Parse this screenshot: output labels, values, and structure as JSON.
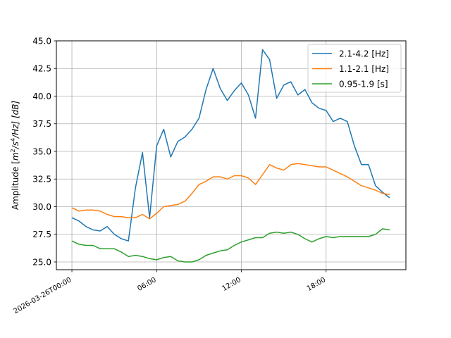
{
  "chart_data": {
    "type": "line",
    "title": "",
    "xlabel": "",
    "ylabel_prefix": "Amplitude [",
    "ylabel_math": "m",
    "ylabel_sup1": "2",
    "ylabel_mid": "/s",
    "ylabel_sup2": "4",
    "ylabel_suffix": "/Hz] [dB]",
    "ylim": [
      24.3,
      45.0
    ],
    "xlim_hours": [
      -1.1,
      23.65
    ],
    "y_ticks": [
      25.0,
      27.5,
      30.0,
      32.5,
      35.0,
      37.5,
      40.0,
      42.5,
      45.0
    ],
    "y_tick_labels": [
      "25.0",
      "27.5",
      "30.0",
      "32.5",
      "35.0",
      "37.5",
      "40.0",
      "42.5",
      "45.0"
    ],
    "x_ticks_hours": [
      0,
      6,
      12,
      18
    ],
    "x_tick_labels": [
      "2026-03-26T00:00",
      "06:00",
      "12:00",
      "18:00"
    ],
    "grid": true,
    "legend_position": "top-right",
    "x_hours": [
      0.0,
      0.5,
      1.0,
      1.5,
      2.0,
      2.5,
      3.0,
      3.5,
      4.0,
      4.5,
      5.0,
      5.5,
      6.0,
      6.5,
      7.0,
      7.5,
      8.0,
      8.5,
      9.0,
      9.5,
      10.0,
      10.5,
      11.0,
      11.5,
      12.0,
      12.5,
      13.0,
      13.5,
      14.0,
      14.5,
      15.0,
      15.5,
      16.0,
      16.5,
      17.0,
      17.5,
      18.0,
      18.5,
      19.0,
      19.5,
      20.0,
      20.5,
      21.0,
      21.5,
      22.0,
      22.5
    ],
    "series": [
      {
        "name": "2.1-4.2 [Hz]",
        "color": "#1f77b4",
        "values": [
          29.0,
          28.7,
          28.2,
          27.9,
          27.8,
          28.2,
          27.5,
          27.1,
          26.9,
          31.7,
          34.9,
          29.0,
          35.5,
          37.0,
          34.5,
          35.9,
          36.3,
          37.0,
          38.0,
          40.6,
          42.5,
          40.7,
          39.6,
          40.5,
          41.2,
          40.1,
          38.0,
          44.2,
          43.3,
          39.8,
          41.0,
          41.3,
          40.1,
          40.6,
          39.4,
          38.9,
          38.7,
          37.7,
          38.0,
          37.7,
          35.5,
          33.8,
          33.8,
          31.9,
          31.3,
          30.8
        ]
      },
      {
        "name": "1.1-2.1 [Hz]",
        "color": "#ff7f0e",
        "values": [
          29.9,
          29.6,
          29.7,
          29.7,
          29.6,
          29.3,
          29.1,
          29.1,
          29.0,
          29.0,
          29.3,
          28.9,
          29.4,
          30.0,
          30.1,
          30.2,
          30.5,
          31.2,
          32.0,
          32.3,
          32.7,
          32.7,
          32.5,
          32.8,
          32.8,
          32.6,
          32.0,
          32.9,
          33.8,
          33.5,
          33.3,
          33.8,
          33.9,
          33.8,
          33.7,
          33.6,
          33.6,
          33.3,
          33.0,
          32.7,
          32.3,
          31.9,
          31.7,
          31.5,
          31.2,
          31.1
        ]
      },
      {
        "name": "0.95-1.9 [s]",
        "color": "#2ca02c",
        "values": [
          26.9,
          26.6,
          26.5,
          26.5,
          26.2,
          26.2,
          26.2,
          25.9,
          25.5,
          25.6,
          25.5,
          25.3,
          25.2,
          25.4,
          25.5,
          25.1,
          25.0,
          25.0,
          25.2,
          25.6,
          25.8,
          26.0,
          26.1,
          26.5,
          26.8,
          27.0,
          27.2,
          27.2,
          27.6,
          27.7,
          27.6,
          27.7,
          27.5,
          27.1,
          26.8,
          27.1,
          27.3,
          27.2,
          27.3,
          27.3,
          27.3,
          27.3,
          27.3,
          27.5,
          28.0,
          27.9
        ]
      }
    ]
  }
}
